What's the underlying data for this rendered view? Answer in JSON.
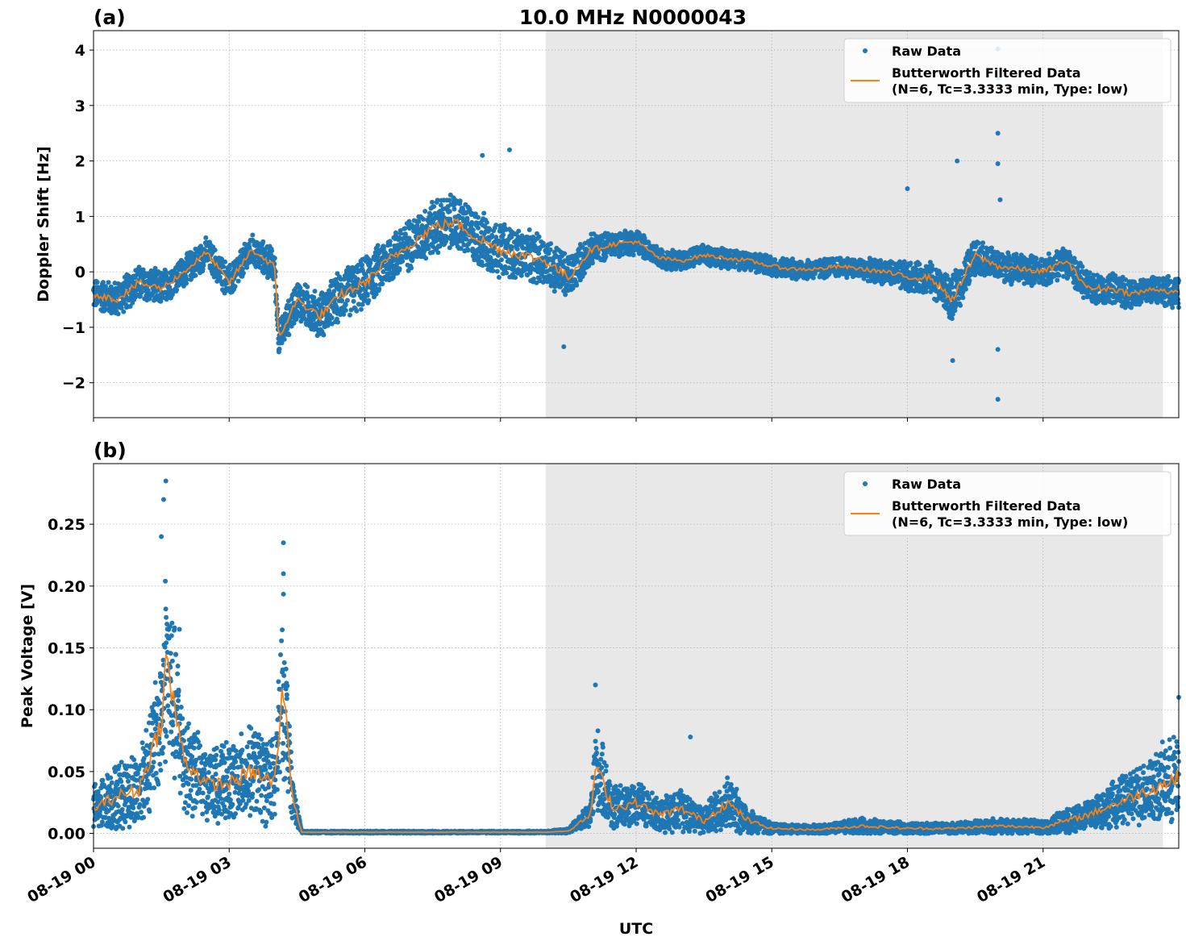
{
  "figure": {
    "title": "10.0 MHz N0000043",
    "xlabel": "UTC"
  },
  "colors": {
    "raw": "#1f77b4",
    "filtered": "#ff7f0e",
    "shade": "#e8e8e8"
  },
  "chart_data": [
    {
      "panel_label": "(a)",
      "type": "scatter+line",
      "ylabel": "Doppler Shift [Hz]",
      "xlim_hours": [
        0,
        24
      ],
      "ylim": [
        -2.63,
        4.35
      ],
      "yticks": [
        -2,
        -1,
        0,
        1,
        2,
        3,
        4
      ],
      "ytick_labels": [
        "−2",
        "−1",
        "0",
        "1",
        "2",
        "3",
        "4"
      ],
      "xticks_hours": [
        0,
        3,
        6,
        9,
        12,
        15,
        18,
        21
      ],
      "xtick_labels": [
        "08-19 00",
        "08-19 03",
        "08-19 06",
        "08-19 09",
        "08-19 12",
        "08-19 15",
        "08-19 18",
        "08-19 21"
      ],
      "shaded_hours": [
        10.0,
        23.65
      ],
      "legend": {
        "placement": "top-right",
        "raw": "Raw Data",
        "filtered_line1": "Butterworth Filtered Data",
        "filtered_line2": "(N=6, Tc=3.3333 min, Type: low)"
      },
      "filtered": {
        "x": [
          0,
          0.5,
          1,
          1.5,
          2,
          2.5,
          3,
          3.5,
          4,
          4.1,
          4.5,
          5,
          5.5,
          6,
          6.5,
          7,
          7.5,
          8,
          8.5,
          9,
          9.5,
          10,
          10.5,
          11,
          11.5,
          12,
          12.5,
          13,
          13.5,
          14,
          14.5,
          15,
          15.5,
          16,
          16.5,
          17,
          17.5,
          18,
          18.5,
          19,
          19.5,
          20,
          20.5,
          21,
          21.5,
          22,
          22.5,
          23,
          23.5,
          24
        ],
        "y": [
          -0.4,
          -0.5,
          -0.2,
          -0.3,
          0.0,
          0.35,
          -0.2,
          0.4,
          0.1,
          -1.2,
          -0.5,
          -0.8,
          -0.4,
          -0.2,
          0.2,
          0.5,
          0.8,
          0.9,
          0.6,
          0.4,
          0.3,
          0.2,
          -0.1,
          0.4,
          0.5,
          0.55,
          0.25,
          0.2,
          0.3,
          0.25,
          0.2,
          0.1,
          0.05,
          0.05,
          0.1,
          0.05,
          0.0,
          -0.1,
          -0.1,
          -0.5,
          0.3,
          0.1,
          0.05,
          0.0,
          0.2,
          -0.3,
          -0.3,
          -0.4,
          -0.3,
          -0.4
        ],
        "spread": [
          0.3,
          0.35,
          0.35,
          0.35,
          0.3,
          0.3,
          0.35,
          0.3,
          0.35,
          0.3,
          0.4,
          0.45,
          0.5,
          0.5,
          0.5,
          0.5,
          0.55,
          0.55,
          0.55,
          0.55,
          0.5,
          0.5,
          0.45,
          0.3,
          0.25,
          0.25,
          0.2,
          0.2,
          0.2,
          0.2,
          0.2,
          0.2,
          0.2,
          0.2,
          0.2,
          0.2,
          0.25,
          0.3,
          0.3,
          0.45,
          0.35,
          0.3,
          0.3,
          0.3,
          0.3,
          0.3,
          0.3,
          0.3,
          0.3,
          0.3
        ]
      },
      "outliers": [
        [
          9.2,
          2.2
        ],
        [
          8.6,
          2.1
        ],
        [
          18.0,
          1.5
        ],
        [
          19.1,
          2.0
        ],
        [
          20.0,
          4.02
        ],
        [
          20.0,
          3.5
        ],
        [
          20.0,
          2.5
        ],
        [
          20.0,
          1.95
        ],
        [
          20.0,
          -2.3
        ],
        [
          20.0,
          -1.4
        ],
        [
          20.05,
          1.3
        ],
        [
          19.0,
          -1.6
        ],
        [
          10.4,
          -1.35
        ]
      ]
    },
    {
      "panel_label": "(b)",
      "type": "scatter+line",
      "ylabel": "Peak Voltage [V]",
      "xlim_hours": [
        0,
        24
      ],
      "ylim": [
        -0.012,
        0.299
      ],
      "yticks": [
        0,
        0.05,
        0.1,
        0.15,
        0.2,
        0.25
      ],
      "ytick_labels": [
        "0.00",
        "0.05",
        "0.10",
        "0.15",
        "0.20",
        "0.25"
      ],
      "xticks_hours": [
        0,
        3,
        6,
        9,
        12,
        15,
        18,
        21
      ],
      "xtick_labels": [
        "08-19 00",
        "08-19 03",
        "08-19 06",
        "08-19 09",
        "08-19 12",
        "08-19 15",
        "08-19 18",
        "08-19 21"
      ],
      "shaded_hours": [
        10.0,
        23.65
      ],
      "legend": {
        "placement": "top-right",
        "raw": "Raw Data",
        "filtered_line1": "Butterworth Filtered Data",
        "filtered_line2": "(N=6, Tc=3.3333 min, Type: low)"
      },
      "filtered": {
        "x": [
          0,
          0.5,
          1,
          1.5,
          1.6,
          2,
          2.5,
          3,
          3.5,
          4,
          4.2,
          4.4,
          4.6,
          6,
          8,
          10,
          10.5,
          11,
          11.1,
          11.5,
          12,
          12.5,
          13,
          13.5,
          14,
          14.5,
          15,
          16,
          17,
          18,
          19,
          20,
          21,
          22,
          23,
          24
        ],
        "y": [
          0.02,
          0.03,
          0.035,
          0.09,
          0.14,
          0.06,
          0.04,
          0.04,
          0.05,
          0.04,
          0.12,
          0.03,
          0.001,
          0.001,
          0.001,
          0.001,
          0.002,
          0.015,
          0.055,
          0.02,
          0.025,
          0.015,
          0.02,
          0.01,
          0.025,
          0.01,
          0.004,
          0.003,
          0.006,
          0.004,
          0.004,
          0.006,
          0.005,
          0.015,
          0.03,
          0.045
        ],
        "spread": [
          0.02,
          0.03,
          0.035,
          0.06,
          0.09,
          0.05,
          0.03,
          0.035,
          0.04,
          0.04,
          0.08,
          0.02,
          0.001,
          0.001,
          0.001,
          0.001,
          0.002,
          0.012,
          0.04,
          0.02,
          0.02,
          0.015,
          0.02,
          0.012,
          0.025,
          0.012,
          0.005,
          0.004,
          0.007,
          0.005,
          0.005,
          0.007,
          0.006,
          0.015,
          0.025,
          0.04
        ]
      },
      "outliers": [
        [
          1.6,
          0.285
        ],
        [
          1.55,
          0.27
        ],
        [
          1.5,
          0.24
        ],
        [
          4.2,
          0.235
        ],
        [
          4.2,
          0.21
        ],
        [
          11.1,
          0.12
        ],
        [
          1.9,
          0.165
        ],
        [
          13.2,
          0.078
        ],
        [
          24.0,
          0.11
        ]
      ]
    }
  ]
}
